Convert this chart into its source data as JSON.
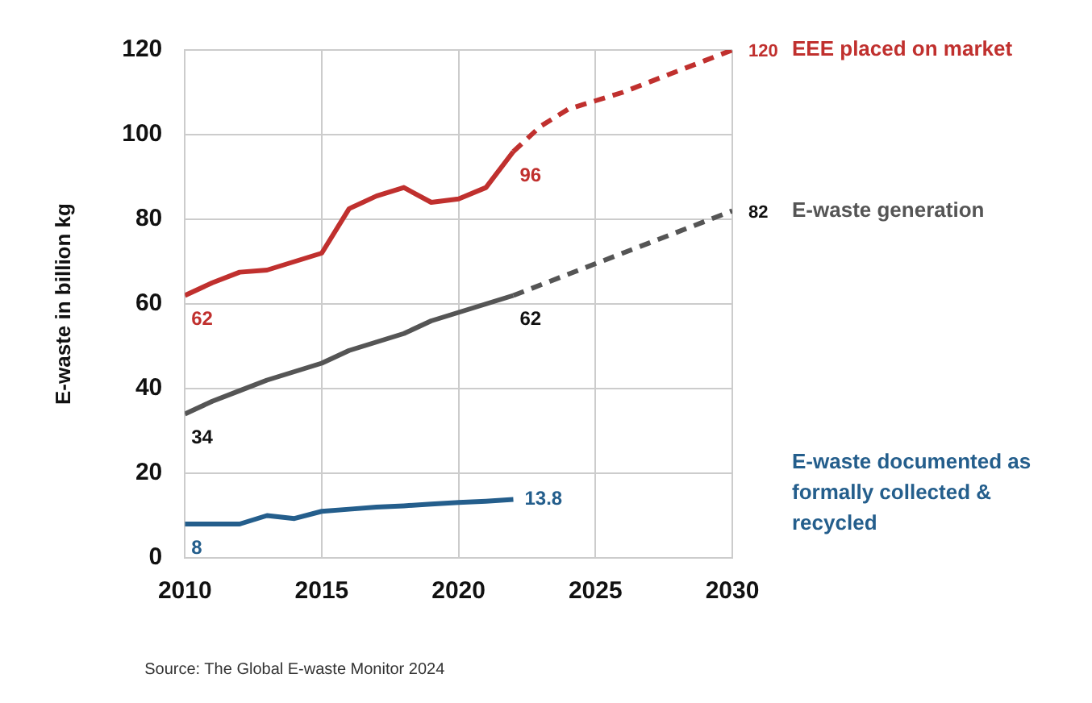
{
  "chart_data": {
    "type": "line",
    "ylabel": "E-waste in billion kg",
    "xlim": [
      2010,
      2030
    ],
    "xticks": [
      2010,
      2015,
      2020,
      2025,
      2030
    ],
    "ylim": [
      0,
      120
    ],
    "yticks": [
      0,
      20,
      40,
      60,
      80,
      100,
      120
    ],
    "grid": true,
    "legend": false,
    "marker": "none",
    "series": [
      {
        "name": "EEE placed on market",
        "color": "#c0302e",
        "line_style": "solid",
        "x": [
          2010,
          2011,
          2012,
          2013,
          2014,
          2015,
          2016,
          2017,
          2018,
          2019,
          2020,
          2021,
          2022
        ],
        "values": [
          62,
          65,
          67.5,
          68,
          70,
          72,
          82.5,
          85.5,
          87.5,
          84,
          84.8,
          87.5,
          96
        ]
      },
      {
        "color": "#c0302e",
        "line_style": "dashed",
        "x": [
          2022,
          2023,
          2024,
          2025,
          2026,
          2027,
          2028,
          2029,
          2030
        ],
        "values": [
          96,
          102,
          106,
          108,
          110,
          112.5,
          115,
          117.5,
          120
        ]
      },
      {
        "name": "E-waste generation",
        "color": "#555555",
        "line_style": "solid",
        "x": [
          2010,
          2011,
          2012,
          2013,
          2014,
          2015,
          2016,
          2017,
          2018,
          2019,
          2020,
          2021,
          2022
        ],
        "values": [
          34,
          37,
          39.5,
          42,
          44,
          46,
          49,
          51,
          53,
          56,
          58,
          60,
          62
        ]
      },
      {
        "color": "#555555",
        "line_style": "dashed",
        "x": [
          2022,
          2030
        ],
        "values": [
          62,
          82
        ]
      },
      {
        "name": "E-waste documented as formally collected & recycled",
        "color": "#245e8c",
        "line_style": "solid",
        "x": [
          2010,
          2011,
          2012,
          2013,
          2014,
          2015,
          2016,
          2017,
          2018,
          2019,
          2020,
          2021,
          2022
        ],
        "values": [
          8,
          8,
          8,
          10,
          9.3,
          11,
          11.5,
          12,
          12.3,
          12.7,
          13.1,
          13.4,
          13.8
        ]
      }
    ],
    "annotations": [
      {
        "text": "62",
        "x": 2010,
        "y": 62
      },
      {
        "text": "96",
        "x": 2022,
        "y": 96
      },
      {
        "text": "120",
        "x": 2030,
        "y": 120
      },
      {
        "text": "34",
        "x": 2010,
        "y": 34
      },
      {
        "text": "62",
        "x": 2022,
        "y": 62
      },
      {
        "text": "82",
        "x": 2030,
        "y": 82
      },
      {
        "text": "8",
        "x": 2010,
        "y": 8
      },
      {
        "text": "13.8",
        "x": 2022,
        "y": 13.8
      },
      "Source: The Global E-waste Monitor 2024"
    ]
  }
}
